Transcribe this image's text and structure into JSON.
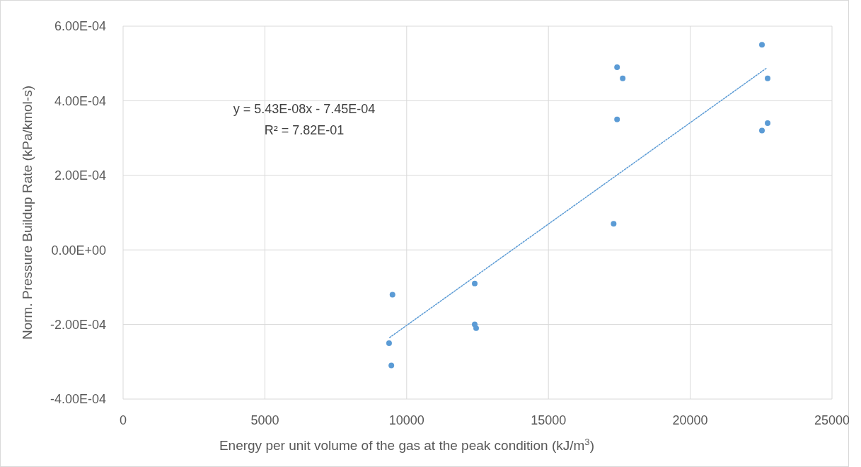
{
  "chart_data": {
    "type": "scatter",
    "xlabel": "Energy per unit volume of the gas at the peak condition (kJ/m$^{3}$)",
    "ylabel": "Norm. Pressure Buildup Rate (kPa/kmol-s)",
    "xlim": [
      0,
      25000
    ],
    "xticks": [
      0,
      5000,
      10000,
      15000,
      20000,
      25000
    ],
    "ylim": [
      -0.0004,
      0.0006
    ],
    "yticks": [
      {
        "value": -0.0004,
        "label": "-4.00E-04"
      },
      {
        "value": -0.0002,
        "label": "-2.00E-04"
      },
      {
        "value": 0,
        "label": "0.00E+00"
      },
      {
        "value": 0.0002,
        "label": "2.00E-04"
      },
      {
        "value": 0.0004,
        "label": "4.00E-04"
      },
      {
        "value": 0.0006,
        "label": "6.00E-04"
      }
    ],
    "grid": true,
    "annotations": [
      "y = 5.43E-08x - 7.45E-04",
      "R² = 7.82E-01"
    ],
    "series": [
      {
        "color": "#5b9bd5",
        "marker": "circle",
        "x": [
          9500,
          9380,
          9460,
          12400,
          12400,
          12450,
          17300,
          17420,
          17620,
          17420,
          22530,
          22730,
          22730,
          22530
        ],
        "values": [
          -0.00012,
          -0.00025,
          -0.00031,
          -9e-05,
          -0.0002,
          -0.00021,
          7e-05,
          0.00049,
          0.00046,
          0.00035,
          0.00055,
          0.00046,
          0.00034,
          0.00032
        ]
      },
      {
        "type": "line",
        "color": "#5b9bd5",
        "marker": "none",
        "line_style": "dotted",
        "x": [
          9400,
          22700
        ],
        "values": [
          -0.000235,
          0.000488
        ]
      }
    ]
  }
}
